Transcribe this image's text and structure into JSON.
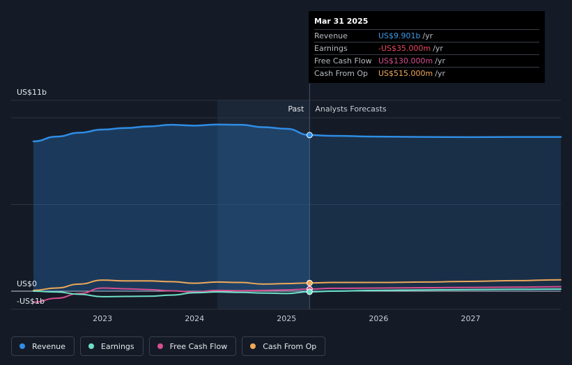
{
  "tooltip": {
    "date": "Mar 31 2025",
    "rows": [
      {
        "label": "Revenue",
        "value": "US$9.901b",
        "unit": "/yr",
        "color": "#3d9be9"
      },
      {
        "label": "Earnings",
        "value": "-US$35.000m",
        "unit": "/yr",
        "color": "#e84a5f"
      },
      {
        "label": "Free Cash Flow",
        "value": "US$130.000m",
        "unit": "/yr",
        "color": "#d64f8e"
      },
      {
        "label": "Cash From Op",
        "value": "US$515.000m",
        "unit": "/yr",
        "color": "#f0a95a"
      }
    ]
  },
  "legend": [
    {
      "label": "Revenue",
      "color": "#2f8de4"
    },
    {
      "label": "Earnings",
      "color": "#6fe0c8"
    },
    {
      "label": "Free Cash Flow",
      "color": "#d64f8e"
    },
    {
      "label": "Cash From Op",
      "color": "#f0a95a"
    }
  ],
  "chart_data": {
    "type": "line",
    "title": "",
    "xlabel": "",
    "ylabel": "",
    "y_tick_labels": [
      "US$11b",
      "US$0",
      "-US$1b"
    ],
    "x_tick_labels": [
      "2023",
      "2024",
      "2025",
      "2026",
      "2027"
    ],
    "ylim": [
      -1,
      11
    ],
    "xlim": [
      2022.25,
      2027.98
    ],
    "past_label": "Past",
    "forecast_label": "Analysts Forecasts",
    "divider_x": 2025.25,
    "grid": true,
    "legend_position": "bottom-left",
    "series": [
      {
        "name": "Revenue",
        "color": "#2f8de4",
        "x": [
          2022.25,
          2022.5,
          2022.75,
          2023.0,
          2023.25,
          2023.5,
          2023.75,
          2024.0,
          2024.25,
          2024.5,
          2024.75,
          2025.0,
          2025.25,
          2025.5,
          2026.0,
          2026.5,
          2027.0,
          2027.5,
          2027.98
        ],
        "y": [
          9.5,
          9.8,
          10.05,
          10.25,
          10.35,
          10.45,
          10.55,
          10.5,
          10.57,
          10.55,
          10.4,
          10.3,
          9.9,
          9.85,
          9.8,
          9.78,
          9.77,
          9.78,
          9.78
        ]
      },
      {
        "name": "Earnings",
        "color": "#6fe0c8",
        "x": [
          2022.25,
          2022.5,
          2022.75,
          2023.0,
          2023.25,
          2023.5,
          2023.75,
          2024.0,
          2024.25,
          2024.5,
          2024.75,
          2025.0,
          2025.25,
          2025.5,
          2026.0,
          2026.5,
          2027.0,
          2027.5,
          2027.98
        ],
        "y": [
          0.0,
          -0.05,
          -0.2,
          -0.35,
          -0.33,
          -0.32,
          -0.25,
          -0.1,
          -0.05,
          -0.08,
          -0.12,
          -0.15,
          -0.04,
          0.0,
          0.05,
          0.08,
          0.1,
          0.12,
          0.13
        ]
      },
      {
        "name": "Free Cash Flow",
        "color": "#d64f8e",
        "x": [
          2022.25,
          2022.5,
          2022.75,
          2023.0,
          2023.25,
          2023.5,
          2023.75,
          2024.0,
          2024.25,
          2024.5,
          2024.75,
          2025.0,
          2025.25,
          2025.5,
          2026.0,
          2026.5,
          2027.0,
          2027.5,
          2027.98
        ],
        "y": [
          -0.7,
          -0.45,
          -0.15,
          0.2,
          0.15,
          0.1,
          0.02,
          -0.05,
          0.05,
          0.03,
          0.05,
          0.08,
          0.13,
          0.18,
          0.2,
          0.22,
          0.24,
          0.26,
          0.28
        ]
      },
      {
        "name": "Cash From Op",
        "color": "#f0a95a",
        "x": [
          2022.25,
          2022.5,
          2022.75,
          2023.0,
          2023.25,
          2023.5,
          2023.75,
          2024.0,
          2024.25,
          2024.5,
          2024.75,
          2025.0,
          2025.25,
          2025.5,
          2026.0,
          2026.5,
          2027.0,
          2027.5,
          2027.98
        ],
        "y": [
          0.05,
          0.2,
          0.45,
          0.7,
          0.65,
          0.65,
          0.6,
          0.5,
          0.58,
          0.55,
          0.45,
          0.48,
          0.52,
          0.55,
          0.55,
          0.58,
          0.62,
          0.67,
          0.72
        ]
      }
    ],
    "highlight_x": 2025.25
  }
}
